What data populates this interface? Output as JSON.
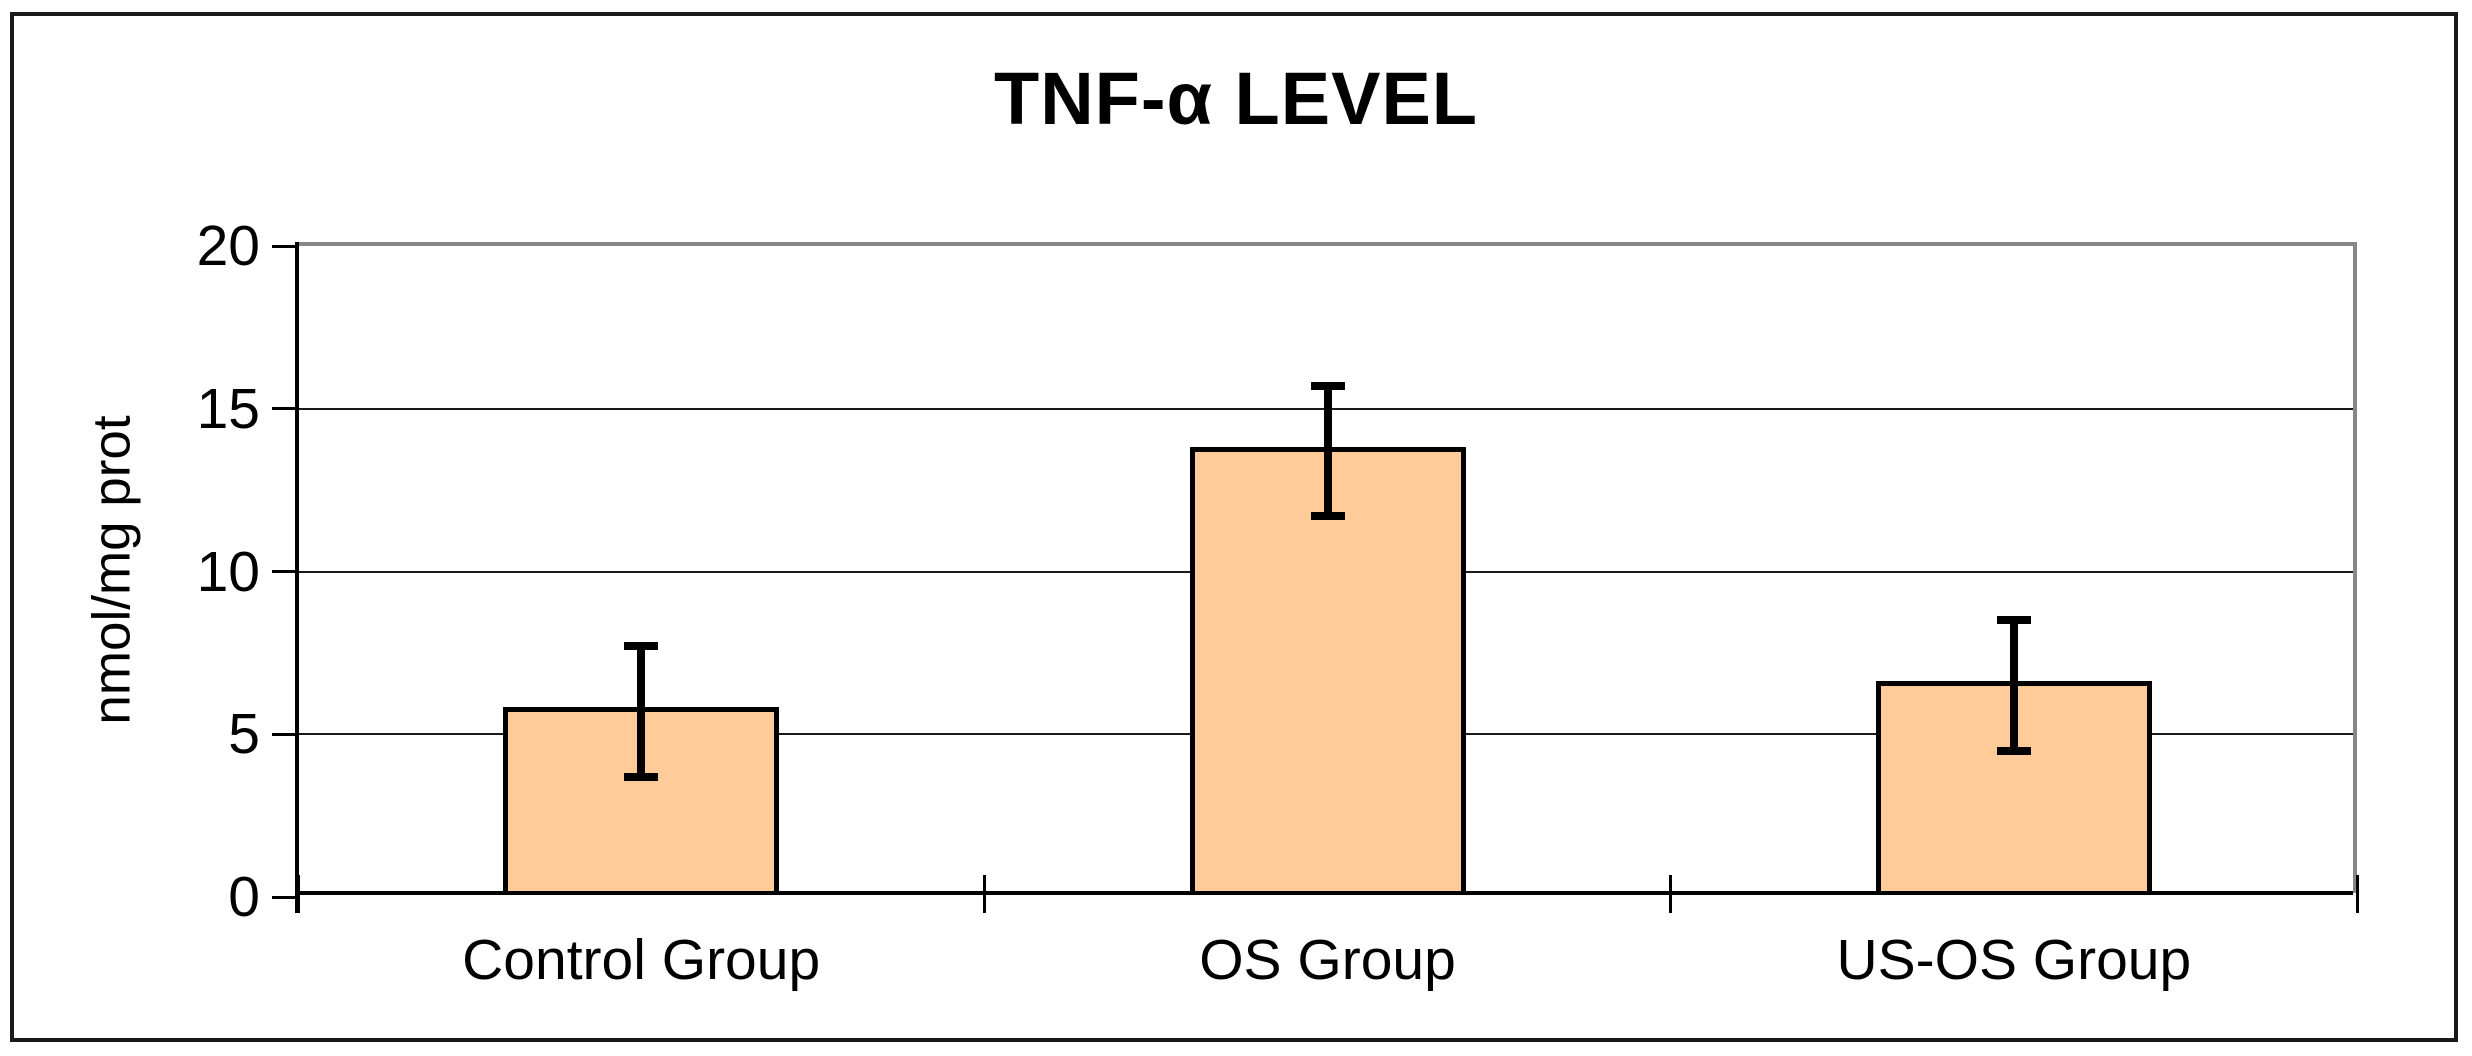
{
  "figure": {
    "background": "#ffffff",
    "outer_border_color": "#1a1a1a"
  },
  "chart_data": {
    "type": "bar",
    "title": "TNF-α LEVEL",
    "xlabel": "",
    "ylabel": "nmol/mg prot",
    "categories": [
      "Control Group",
      "OS Group",
      "US-OS Group"
    ],
    "values": [
      5.7,
      13.7,
      6.5
    ],
    "errors": [
      2.0,
      2.0,
      2.0
    ],
    "ylim": [
      0,
      20
    ],
    "yticks": [
      0,
      5,
      10,
      15,
      20
    ],
    "grid": true,
    "legend": "none",
    "bar_color": "#FFCC99",
    "bar_border_color": "#000000",
    "gridline_color": "#1a1a1a",
    "plot_border_color": "#868686",
    "axis_color": "#000000",
    "text_color": "#000000"
  }
}
